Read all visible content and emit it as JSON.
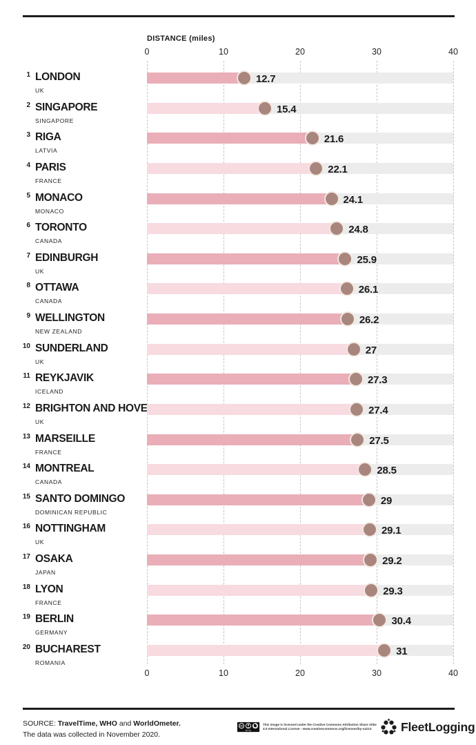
{
  "chart_data": {
    "type": "bar",
    "orientation": "horizontal",
    "title": "DISTANCE (miles)",
    "xlabel": "DISTANCE (miles)",
    "xlim": [
      0,
      40
    ],
    "x_ticks": [
      0,
      10,
      20,
      30,
      40
    ],
    "grid": "dashed-vertical",
    "categories": [
      "LONDON",
      "SINGAPORE",
      "RIGA",
      "PARIS",
      "MONACO",
      "TORONTO",
      "EDINBURGH",
      "OTTAWA",
      "WELLINGTON",
      "SUNDERLAND",
      "REYKJAVIK",
      "BRIGHTON AND HOVE",
      "MARSEILLE",
      "MONTREAL",
      "SANTO DOMINGO",
      "NOTTINGHAM",
      "OSAKA",
      "LYON",
      "BERLIN",
      "BUCHAREST"
    ],
    "values": [
      12.7,
      15.4,
      21.6,
      22.1,
      24.1,
      24.8,
      25.9,
      26.1,
      26.2,
      27,
      27.3,
      27.4,
      27.5,
      28.5,
      29,
      29.1,
      29.2,
      29.3,
      30.4,
      31
    ],
    "rows": [
      {
        "rank": 1,
        "city": "LONDON",
        "country": "UK",
        "value": 12.7
      },
      {
        "rank": 2,
        "city": "SINGAPORE",
        "country": "SINGAPORE",
        "value": 15.4
      },
      {
        "rank": 3,
        "city": "RIGA",
        "country": "LATVIA",
        "value": 21.6
      },
      {
        "rank": 4,
        "city": "PARIS",
        "country": "FRANCE",
        "value": 22.1
      },
      {
        "rank": 5,
        "city": "MONACO",
        "country": "MONACO",
        "value": 24.1
      },
      {
        "rank": 6,
        "city": "TORONTO",
        "country": "CANADA",
        "value": 24.8
      },
      {
        "rank": 7,
        "city": "EDINBURGH",
        "country": "UK",
        "value": 25.9
      },
      {
        "rank": 8,
        "city": "OTTAWA",
        "country": "CANADA",
        "value": 26.1
      },
      {
        "rank": 9,
        "city": "WELLINGTON",
        "country": "NEW ZEALAND",
        "value": 26.2
      },
      {
        "rank": 10,
        "city": "SUNDERLAND",
        "country": "UK",
        "value": 27
      },
      {
        "rank": 11,
        "city": "REYKJAVIK",
        "country": "ICELAND",
        "value": 27.3
      },
      {
        "rank": 12,
        "city": "BRIGHTON AND HOVE",
        "country": "UK",
        "value": 27.4
      },
      {
        "rank": 13,
        "city": "MARSEILLE",
        "country": "FRANCE",
        "value": 27.5
      },
      {
        "rank": 14,
        "city": "MONTREAL",
        "country": "CANADA",
        "value": 28.5
      },
      {
        "rank": 15,
        "city": "SANTO DOMINGO",
        "country": "DOMINICAN REPUBLIC",
        "value": 29
      },
      {
        "rank": 16,
        "city": "NOTTINGHAM",
        "country": "UK",
        "value": 29.1
      },
      {
        "rank": 17,
        "city": "OSAKA",
        "country": "JAPAN",
        "value": 29.2
      },
      {
        "rank": 18,
        "city": "LYON",
        "country": "FRANCE",
        "value": 29.3
      },
      {
        "rank": 19,
        "city": "BERLIN",
        "country": "GERMANY",
        "value": 30.4
      },
      {
        "rank": 20,
        "city": "BUCHAREST",
        "country": "ROMANIA",
        "value": 31
      }
    ]
  },
  "colors": {
    "bar_dark": "#e9aeb8",
    "bar_light": "#f7dbe0",
    "track": "#ececec",
    "dot": "#a9867d",
    "dot_border": "#f2e9e2",
    "text": "#1a1a1a",
    "grid": "#c4c4c4",
    "rule": "#1c1c1c"
  },
  "footer": {
    "source_line1_parts": [
      {
        "text": "SOURCE: ",
        "bold": false
      },
      {
        "text": "TravelTime, WHO",
        "bold": true
      },
      {
        "text": " and ",
        "bold": false
      },
      {
        "text": "WorldOmeter.",
        "bold": true
      }
    ],
    "source_line2": "The data was collected in November 2020.",
    "license_badge": "CC BY-SA",
    "license_line1": "This image is licensed under the Creative Commons Attribution Share Alike",
    "license_line2": "4.0 International License - www.creativecommons.org/licenses/by-sa/4.0",
    "brand": "FleetLogging"
  }
}
